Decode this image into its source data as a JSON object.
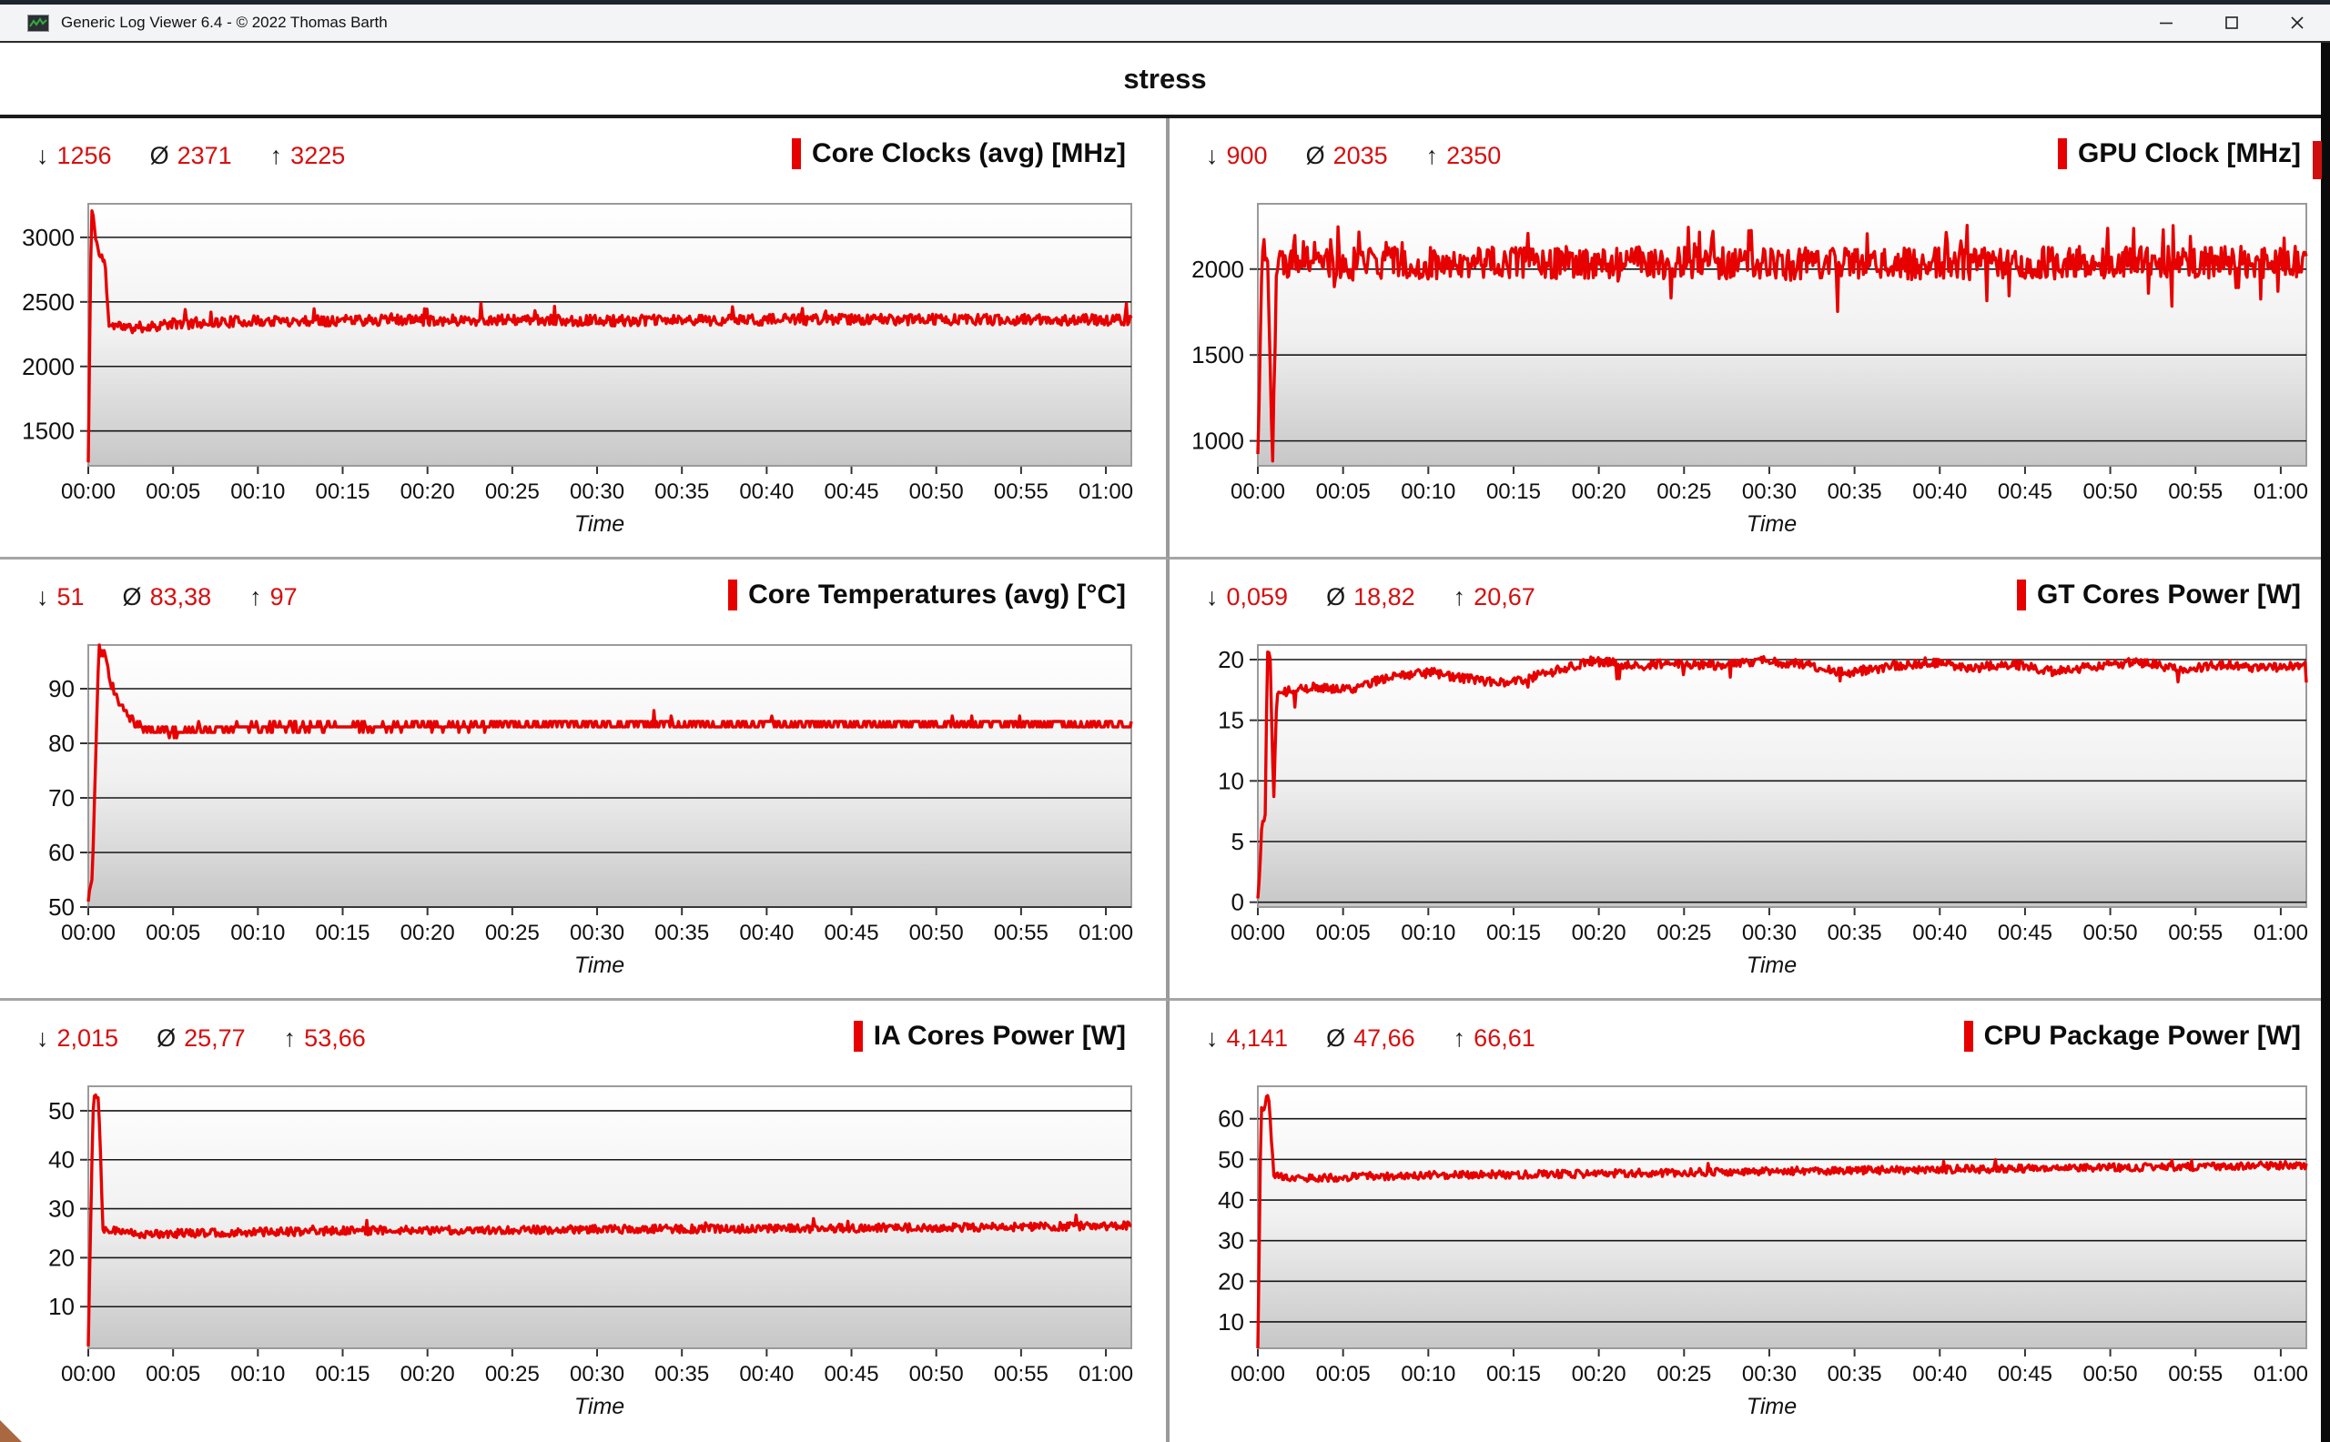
{
  "window": {
    "title": "Generic Log Viewer 6.4 - © 2022 Thomas Barth",
    "app_icon": "log-chart-icon",
    "controls": {
      "minimize": "minimize",
      "maximize": "maximize",
      "close": "close"
    }
  },
  "header": {
    "title": "stress"
  },
  "stats_symbols": {
    "min": "↓",
    "avg": "Ø",
    "max": "↑"
  },
  "colors": {
    "series": "#e60000",
    "stat_value": "#d70e0e",
    "title_marker": "#e60000",
    "gridline": "#161616",
    "plot_border": "#9a9a9a",
    "plot_gradient_top": "#ffffff",
    "plot_gradient_bottom": "#c7c7c7"
  },
  "x_axis": {
    "label": "Time",
    "ticks": [
      "00:00",
      "00:05",
      "00:10",
      "00:15",
      "00:20",
      "00:25",
      "00:30",
      "00:35",
      "00:40",
      "00:45",
      "00:50",
      "00:55",
      "01:00"
    ],
    "tick_minutes": [
      0,
      5,
      10,
      15,
      20,
      25,
      30,
      35,
      40,
      45,
      50,
      55,
      60
    ],
    "total_minutes": 61.5
  },
  "chart_data": {
    "type": "line",
    "note": "six time-series panels, values synthesized from profile control points [t 0..1, value]"
  },
  "charts": [
    {
      "slug": "core-clocks",
      "title": "Core Clocks (avg) [MHz]",
      "min": "1256",
      "avg": "2371",
      "max": "3225",
      "y_ticks": [
        1500,
        2000,
        2500,
        3000
      ],
      "y_range": [
        1230,
        3260
      ],
      "seed": 11,
      "noise": 42,
      "round": 0,
      "profile": [
        [
          0,
          1256
        ],
        [
          0.003,
          3225
        ],
        [
          0.01,
          2870
        ],
        [
          0.016,
          2800
        ],
        [
          0.02,
          2330
        ],
        [
          0.04,
          2295
        ],
        [
          0.08,
          2330
        ],
        [
          0.15,
          2350
        ],
        [
          0.3,
          2360
        ],
        [
          0.5,
          2355
        ],
        [
          0.7,
          2365
        ],
        [
          1,
          2360
        ]
      ],
      "spikes": [
        {
          "prob": 0.012,
          "amp": 120
        }
      ]
    },
    {
      "slug": "gpu-clock",
      "title": "GPU Clock [MHz]",
      "min": "900",
      "avg": "2035",
      "max": "2350",
      "y_ticks": [
        1000,
        1500,
        2000
      ],
      "y_range": [
        855,
        2380
      ],
      "seed": 22,
      "noise": 95,
      "round": 0,
      "profile": [
        [
          0,
          900
        ],
        [
          0.004,
          2150
        ],
        [
          0.01,
          1980
        ],
        [
          0.014,
          910
        ],
        [
          0.018,
          2050
        ],
        [
          0.08,
          2030
        ],
        [
          0.3,
          2040
        ],
        [
          0.6,
          2030
        ],
        [
          1,
          2045
        ]
      ],
      "spikes": [
        {
          "prob": 0.02,
          "amp": -240
        },
        {
          "prob": 0.04,
          "amp": 170
        },
        {
          "prob": 0.008,
          "amp": 260
        }
      ]
    },
    {
      "slug": "core-temperatures",
      "title": "Core Temperatures (avg) [°C]",
      "min": "51",
      "avg": "83,38",
      "max": "97",
      "y_ticks": [
        50,
        60,
        70,
        80,
        90
      ],
      "y_range": [
        50,
        98
      ],
      "seed": 33,
      "noise": 0.8,
      "round": 1,
      "profile": [
        [
          0,
          51
        ],
        [
          0.004,
          56
        ],
        [
          0.01,
          97
        ],
        [
          0.016,
          96
        ],
        [
          0.022,
          91
        ],
        [
          0.03,
          87
        ],
        [
          0.05,
          83
        ],
        [
          0.08,
          82
        ],
        [
          0.15,
          83
        ],
        [
          0.3,
          83
        ],
        [
          0.5,
          83.5
        ],
        [
          0.75,
          83.5
        ],
        [
          1,
          83.5
        ]
      ],
      "spikes": [
        {
          "prob": 0.01,
          "amp": 1.5
        }
      ]
    },
    {
      "slug": "gt-cores-power",
      "title": "GT Cores Power [W]",
      "min": "0,059",
      "avg": "18,82",
      "max": "20,67",
      "y_ticks": [
        0,
        5,
        10,
        15,
        20
      ],
      "y_range": [
        -0.4,
        21.2
      ],
      "seed": 44,
      "noise": 0.38,
      "round": 2,
      "profile": [
        [
          0,
          0.06
        ],
        [
          0.004,
          6.5
        ],
        [
          0.007,
          6.8
        ],
        [
          0.009,
          20.6
        ],
        [
          0.012,
          20.2
        ],
        [
          0.015,
          7.5
        ],
        [
          0.018,
          17.2
        ],
        [
          0.05,
          17.7
        ],
        [
          0.09,
          17.6
        ],
        [
          0.13,
          18.7
        ],
        [
          0.17,
          18.9
        ],
        [
          0.2,
          18.4
        ],
        [
          0.24,
          18.0
        ],
        [
          0.28,
          19.0
        ],
        [
          0.32,
          19.9
        ],
        [
          0.36,
          19.5
        ],
        [
          0.4,
          19.7
        ],
        [
          0.44,
          19.5
        ],
        [
          0.48,
          19.9
        ],
        [
          0.52,
          19.6
        ],
        [
          0.56,
          18.9
        ],
        [
          0.6,
          19.4
        ],
        [
          0.64,
          19.8
        ],
        [
          0.68,
          19.3
        ],
        [
          0.72,
          19.6
        ],
        [
          0.76,
          19.0
        ],
        [
          0.8,
          19.5
        ],
        [
          0.84,
          19.8
        ],
        [
          0.88,
          19.2
        ],
        [
          0.92,
          19.6
        ],
        [
          0.96,
          19.3
        ],
        [
          1,
          19.5
        ]
      ],
      "spikes": [
        {
          "prob": 0.01,
          "amp": -1.4
        }
      ]
    },
    {
      "slug": "ia-cores-power",
      "title": "IA Cores Power [W]",
      "min": "2,015",
      "avg": "25,77",
      "max": "53,66",
      "y_ticks": [
        10,
        20,
        30,
        40,
        50
      ],
      "y_range": [
        1.5,
        55
      ],
      "seed": 55,
      "noise": 0.85,
      "round": 2,
      "profile": [
        [
          0,
          2.0
        ],
        [
          0.003,
          34
        ],
        [
          0.005,
          53.7
        ],
        [
          0.01,
          52.5
        ],
        [
          0.014,
          26
        ],
        [
          0.05,
          24.8
        ],
        [
          0.15,
          25.2
        ],
        [
          0.3,
          25.6
        ],
        [
          0.5,
          25.8
        ],
        [
          0.7,
          26.0
        ],
        [
          0.85,
          26.2
        ],
        [
          1,
          26.5
        ]
      ],
      "spikes": [
        {
          "prob": 0.012,
          "amp": 2.0
        }
      ]
    },
    {
      "slug": "cpu-package-power",
      "title": "CPU Package Power [W]",
      "min": "4,141",
      "avg": "47,66",
      "max": "66,61",
      "y_ticks": [
        10,
        20,
        30,
        40,
        50,
        60
      ],
      "y_range": [
        3.5,
        68
      ],
      "seed": 66,
      "noise": 0.95,
      "round": 2,
      "profile": [
        [
          0,
          4.1
        ],
        [
          0.003,
          62.5
        ],
        [
          0.006,
          61.5
        ],
        [
          0.008,
          66.6
        ],
        [
          0.011,
          64.5
        ],
        [
          0.015,
          45.8
        ],
        [
          0.05,
          45.4
        ],
        [
          0.1,
          45.8
        ],
        [
          0.2,
          46.2
        ],
        [
          0.3,
          46.4
        ],
        [
          0.45,
          47.0
        ],
        [
          0.6,
          47.4
        ],
        [
          0.75,
          47.8
        ],
        [
          0.9,
          48.2
        ],
        [
          1,
          48.6
        ]
      ],
      "spikes": [
        {
          "prob": 0.01,
          "amp": 1.8
        }
      ]
    }
  ]
}
